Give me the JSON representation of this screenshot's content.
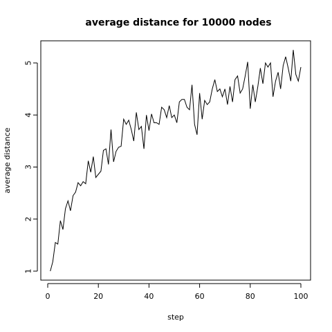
{
  "chart_data": {
    "type": "line",
    "title": "average distance for 10000 nodes",
    "xlabel": "step",
    "ylabel": "average distance",
    "xlim": [
      0,
      100
    ],
    "ylim": [
      0.95,
      5.4
    ],
    "xticks": [
      0,
      20,
      40,
      60,
      80,
      100
    ],
    "yticks": [
      1,
      2,
      3,
      4,
      5
    ],
    "x": [
      1,
      2,
      3,
      4,
      5,
      6,
      7,
      8,
      9,
      10,
      11,
      12,
      13,
      14,
      15,
      16,
      17,
      18,
      19,
      20,
      21,
      22,
      23,
      24,
      25,
      26,
      27,
      28,
      29,
      30,
      31,
      32,
      33,
      34,
      35,
      36,
      37,
      38,
      39,
      40,
      41,
      42,
      43,
      44,
      45,
      46,
      47,
      48,
      49,
      50,
      51,
      52,
      53,
      54,
      55,
      56,
      57,
      58,
      59,
      60,
      61,
      62,
      63,
      64,
      65,
      66,
      67,
      68,
      69,
      70,
      71,
      72,
      73,
      74,
      75,
      76,
      77,
      78,
      79,
      80,
      81,
      82,
      83,
      84,
      85,
      86,
      87,
      88,
      89,
      90,
      91,
      92,
      93,
      94,
      95,
      96,
      97,
      98,
      99,
      100
    ],
    "series": [
      {
        "values": [
          1.0,
          1.18,
          1.55,
          1.52,
          1.97,
          1.8,
          2.2,
          2.35,
          2.16,
          2.45,
          2.52,
          2.7,
          2.64,
          2.72,
          2.68,
          3.12,
          2.9,
          3.2,
          2.8,
          2.86,
          2.92,
          3.32,
          3.35,
          3.05,
          3.72,
          3.1,
          3.3,
          3.38,
          3.4,
          3.92,
          3.82,
          3.9,
          3.72,
          3.5,
          4.05,
          3.72,
          3.78,
          3.35,
          4.0,
          3.7,
          4.02,
          3.85,
          3.85,
          3.82,
          4.15,
          4.1,
          3.95,
          4.18,
          3.95,
          4.0,
          3.85,
          4.25,
          4.3,
          4.3,
          4.15,
          4.1,
          4.58,
          3.82,
          3.62,
          4.42,
          3.92,
          4.28,
          4.2,
          4.25,
          4.5,
          4.68,
          4.45,
          4.5,
          4.35,
          4.5,
          4.2,
          4.55,
          4.25,
          4.68,
          4.75,
          4.42,
          4.5,
          4.75,
          5.02,
          4.12,
          4.58,
          4.25,
          4.55,
          4.9,
          4.6,
          5.0,
          4.92,
          5.0,
          4.35,
          4.65,
          4.82,
          4.5,
          4.95,
          5.12,
          4.9,
          4.65,
          5.25,
          4.78,
          4.65,
          4.92
        ]
      }
    ]
  }
}
